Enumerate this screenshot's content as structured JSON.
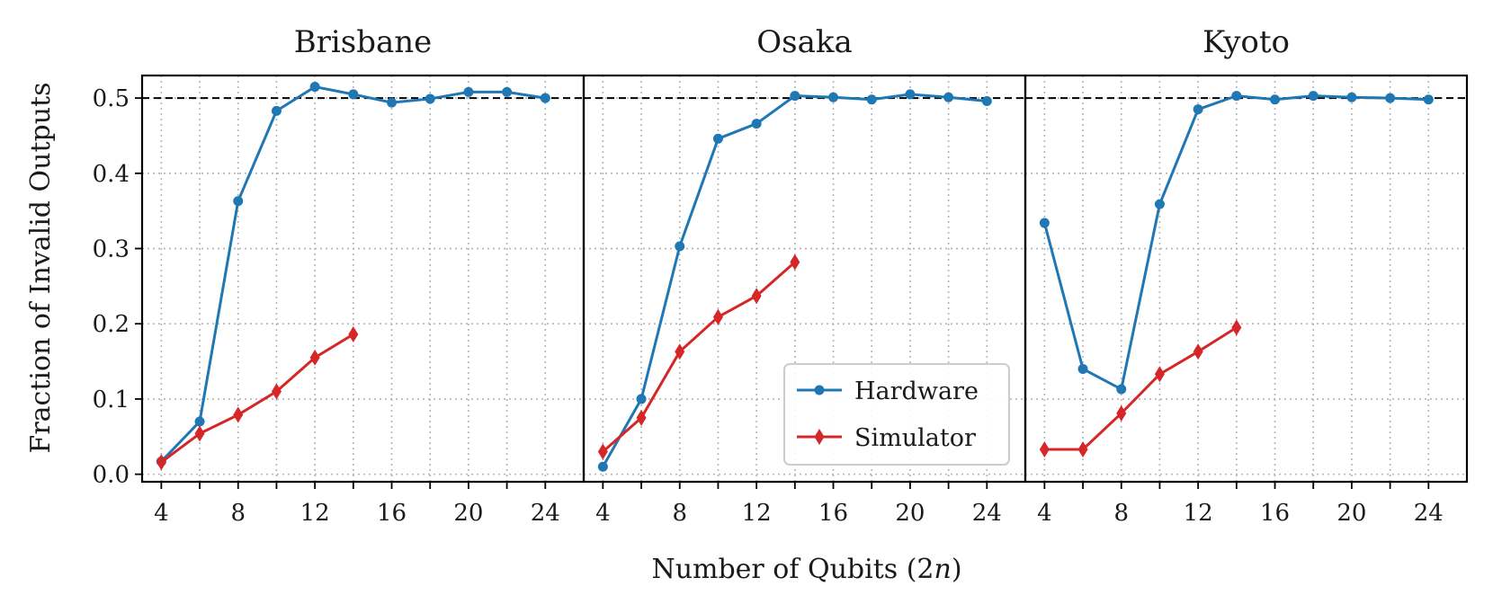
{
  "chart_data": {
    "type": "line",
    "xlabel": "Number of Qubits (2n)",
    "ylabel": "Fraction of Invalid Outputs",
    "xlim": [
      3,
      26
    ],
    "ylim": [
      -0.01,
      0.53
    ],
    "xticks": [
      4,
      8,
      12,
      16,
      20,
      24
    ],
    "xtick_labels": [
      "4",
      "8",
      "12",
      "16",
      "20",
      "24"
    ],
    "yticks": [
      0.0,
      0.1,
      0.2,
      0.3,
      0.4,
      0.5
    ],
    "ytick_labels": [
      "0.0",
      "0.1",
      "0.2",
      "0.3",
      "0.4",
      "0.5"
    ],
    "grid": true,
    "reference_line": 0.5,
    "legend": {
      "placement": "lower-right of middle panel",
      "entries": [
        "Hardware",
        "Simulator"
      ]
    },
    "colors": {
      "Hardware": "#1f77b4",
      "Simulator": "#d62728",
      "reference": "#000000"
    },
    "panels": [
      {
        "title": "Brisbane",
        "series": [
          {
            "name": "Hardware",
            "marker": "circle",
            "x": [
              4,
              6,
              8,
              10,
              12,
              14,
              16,
              18,
              20,
              22,
              24
            ],
            "y": [
              0.017,
              0.07,
              0.363,
              0.483,
              0.515,
              0.505,
              0.494,
              0.499,
              0.508,
              0.508,
              0.5
            ]
          },
          {
            "name": "Simulator",
            "marker": "thin-diamond",
            "x": [
              4,
              6,
              8,
              10,
              12,
              14
            ],
            "y": [
              0.016,
              0.054,
              0.079,
              0.11,
              0.155,
              0.186
            ]
          }
        ]
      },
      {
        "title": "Osaka",
        "series": [
          {
            "name": "Hardware",
            "marker": "circle",
            "x": [
              4,
              6,
              8,
              10,
              12,
              14,
              16,
              18,
              20,
              22,
              24
            ],
            "y": [
              0.01,
              0.1,
              0.303,
              0.446,
              0.466,
              0.503,
              0.501,
              0.498,
              0.505,
              0.501,
              0.496
            ]
          },
          {
            "name": "Simulator",
            "marker": "thin-diamond",
            "x": [
              4,
              6,
              8,
              10,
              12,
              14
            ],
            "y": [
              0.03,
              0.075,
              0.163,
              0.209,
              0.237,
              0.282
            ]
          }
        ]
      },
      {
        "title": "Kyoto",
        "series": [
          {
            "name": "Hardware",
            "marker": "circle",
            "x": [
              4,
              6,
              8,
              10,
              12,
              14,
              16,
              18,
              20,
              22,
              24
            ],
            "y": [
              0.334,
              0.14,
              0.113,
              0.359,
              0.485,
              0.503,
              0.498,
              0.503,
              0.501,
              0.5,
              0.498
            ]
          },
          {
            "name": "Simulator",
            "marker": "thin-diamond",
            "x": [
              4,
              6,
              8,
              10,
              12,
              14
            ],
            "y": [
              0.033,
              0.033,
              0.081,
              0.133,
              0.163,
              0.195
            ]
          }
        ]
      }
    ]
  }
}
